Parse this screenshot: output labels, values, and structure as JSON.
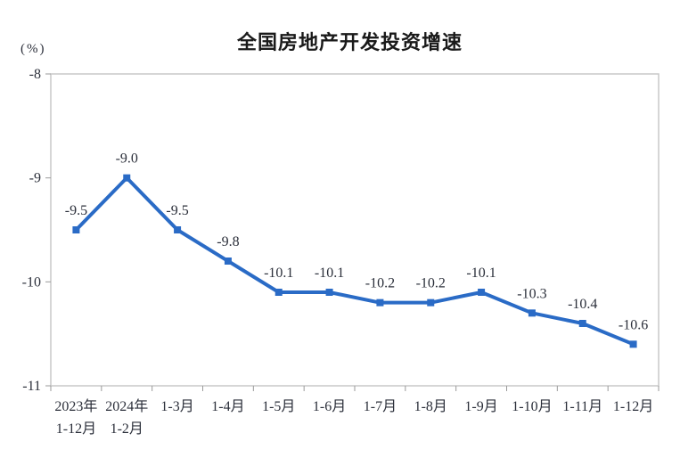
{
  "chart_data": {
    "type": "line",
    "title": "全国房地产开发投资增速",
    "unit_label": "(%)",
    "categories": [
      [
        "2023年",
        "1-12月"
      ],
      [
        "2024年",
        "1-2月"
      ],
      [
        "1-3月"
      ],
      [
        "1-4月"
      ],
      [
        "1-5月"
      ],
      [
        "1-6月"
      ],
      [
        "1-7月"
      ],
      [
        "1-8月"
      ],
      [
        "1-9月"
      ],
      [
        "1-10月"
      ],
      [
        "1-11月"
      ],
      [
        "1-12月"
      ]
    ],
    "values": [
      -9.5,
      -9.0,
      -9.5,
      -9.8,
      -10.1,
      -10.1,
      -10.2,
      -10.2,
      -10.1,
      -10.3,
      -10.4,
      -10.6
    ],
    "labels": [
      "-9.5",
      "-9.0",
      "-9.5",
      "-9.8",
      "-10.1",
      "-10.1",
      "-10.2",
      "-10.2",
      "-10.1",
      "-10.3",
      "-10.4",
      "-10.6"
    ],
    "ylim": [
      -11,
      -8
    ],
    "yticks": [
      -8,
      -9,
      -10,
      -11
    ],
    "grid": false,
    "legend": "none",
    "marker": "square",
    "colors": {
      "line": "#2a6bc6",
      "plot_border": "#c9c9c9",
      "tick": "#9a9a9a",
      "text": "#2b2f3a",
      "title": "#1a1a1a",
      "background": "#ffffff"
    }
  }
}
